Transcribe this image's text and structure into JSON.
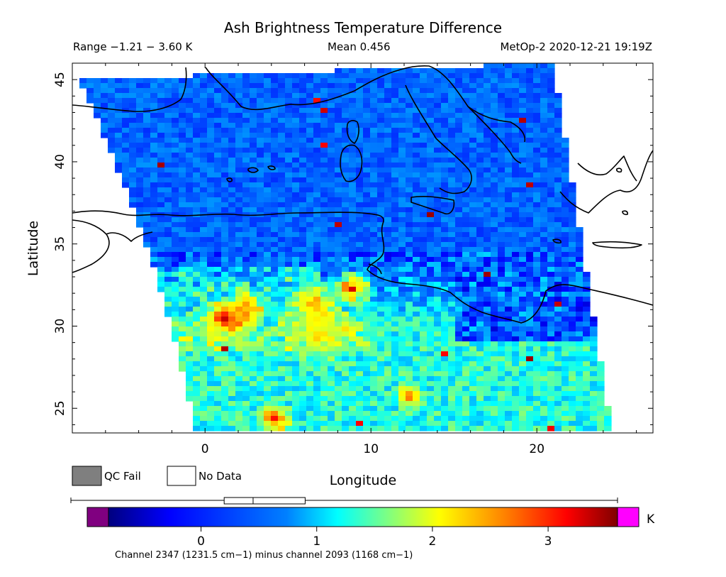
{
  "title": "Ash Brightness Temperature Difference",
  "header": {
    "range_label": "Range −1.21 − 3.60 K",
    "mean_label": "Mean 0.456",
    "satellite_time": "MetOp-2 2020-12-21 19:19Z"
  },
  "axes": {
    "xlabel": "Longitude",
    "ylabel": "Latitude",
    "x_range": [
      -8,
      27
    ],
    "y_range": [
      23.5,
      46
    ],
    "x_ticks": [
      0,
      10,
      20
    ],
    "x_tick_labels": [
      "0",
      "10",
      "20"
    ],
    "y_ticks": [
      25,
      30,
      35,
      40,
      45
    ],
    "y_tick_labels": [
      "25",
      "30",
      "35",
      "40",
      "45"
    ]
  },
  "legend": {
    "qc_fail_label": "QC Fail",
    "qc_fail_color": "#7f7f7f",
    "no_data_label": "No Data",
    "no_data_color": "#ffffff"
  },
  "colorbar": {
    "unit": "K",
    "range": [
      -0.8,
      3.6
    ],
    "tick_values": [
      0,
      1,
      2,
      3
    ],
    "tick_labels": [
      "0",
      "1",
      "2",
      "3"
    ],
    "underflow_color": "#800080",
    "overflow_color": "#ff00ff",
    "boxplot": {
      "min": -1.21,
      "q1": 0.2,
      "median": 0.45,
      "q3": 0.9,
      "max": 3.6
    },
    "caption": "Channel 2347 (1231.5 cm−1) minus channel 2093 (1168 cm−1)"
  },
  "chart_data": {
    "type": "heatmap",
    "title": "Ash Brightness Temperature Difference",
    "xlabel": "Longitude",
    "ylabel": "Latitude",
    "xlim": [
      -8,
      27
    ],
    "ylim": [
      23.5,
      46
    ],
    "value_range": [
      -1.21,
      3.6
    ],
    "mean": 0.456,
    "units": "K",
    "swath_corners_lonlat": [
      [
        -8,
        45
      ],
      [
        -0.5,
        23.5
      ],
      [
        24.5,
        23.5
      ],
      [
        21,
        46
      ]
    ],
    "regional_values": [
      {
        "region": "Mediterranean Sea / northern swath",
        "value": 0.0
      },
      {
        "region": "Northern Africa, 0-10E, 29-33N",
        "value": 2.0
      },
      {
        "region": "Hotspot 0E 30N",
        "value": 3.5
      },
      {
        "region": "Hotspot 1.5E 31N",
        "value": 3.3
      },
      {
        "region": "Hotspot 9E 32.5N",
        "value": 3.4
      },
      {
        "region": "Hotspot 4E 24N",
        "value": 3.2
      },
      {
        "region": "Hotspot 12.5E 26N",
        "value": 2.9
      },
      {
        "region": "Southern Libya / Egypt 25-29N",
        "value": 1.0
      }
    ]
  }
}
